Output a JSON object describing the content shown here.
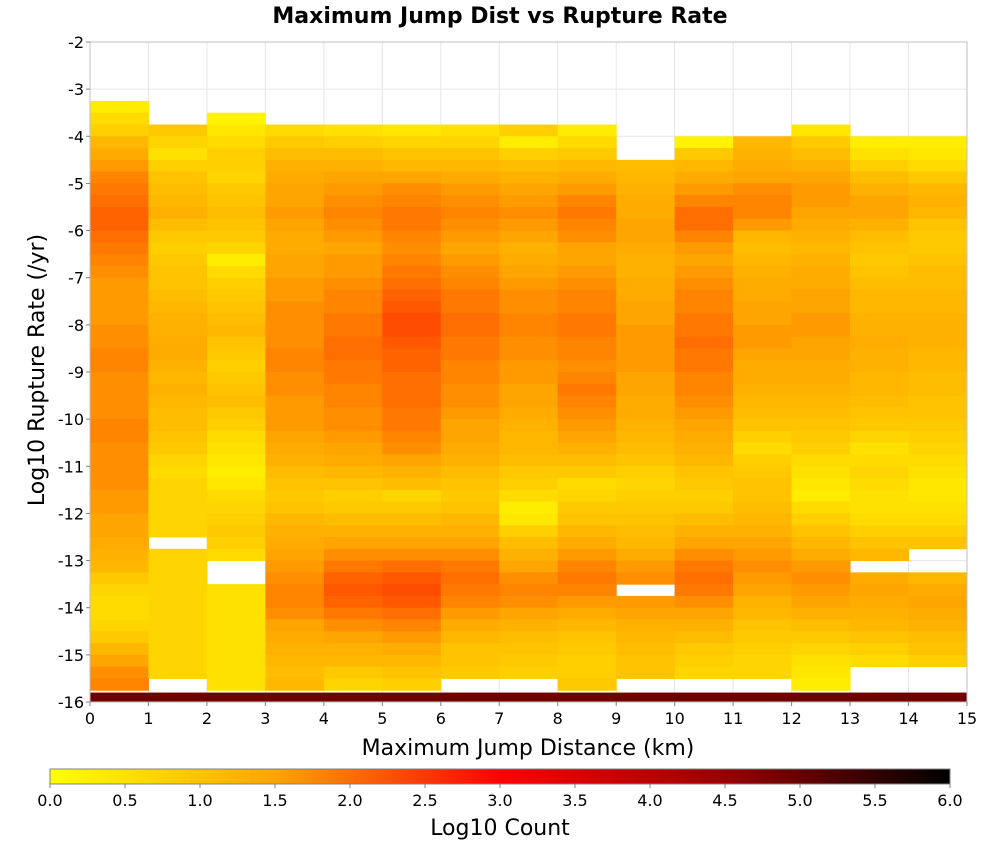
{
  "chart_data": {
    "type": "heatmap",
    "title": "Maximum Jump Dist vs Rupture Rate",
    "xlabel": "Maximum Jump Distance (km)",
    "ylabel": "Log10 Rupture Rate (/yr)",
    "xlim": [
      0,
      15
    ],
    "ylim": [
      -16,
      -2
    ],
    "x_ticks": [
      "0",
      "1",
      "2",
      "3",
      "4",
      "5",
      "6",
      "7",
      "8",
      "9",
      "10",
      "11",
      "12",
      "13",
      "14",
      "15"
    ],
    "y_ticks": [
      "-2",
      "-3",
      "-4",
      "-5",
      "-6",
      "-7",
      "-8",
      "-9",
      "-10",
      "-11",
      "-12",
      "-13",
      "-14",
      "-15",
      "-16"
    ],
    "bin_width_x": 1,
    "bin_height_y": 0.25,
    "grid": true,
    "colorscale": {
      "label": "Log10 Count",
      "min": 0.0,
      "max": 6.0,
      "ticks": [
        "0.0",
        "0.5",
        "1.0",
        "1.5",
        "2.0",
        "2.5",
        "3.0",
        "3.5",
        "4.0",
        "4.5",
        "5.0",
        "5.5",
        "6.0"
      ],
      "stops": [
        {
          "v": 0.0,
          "color": "#ffff00"
        },
        {
          "v": 1.5,
          "color": "#ffa500"
        },
        {
          "v": 3.0,
          "color": "#ff0000"
        },
        {
          "v": 4.5,
          "color": "#990000"
        },
        {
          "v": 6.0,
          "color": "#000000"
        }
      ]
    },
    "columns": [
      {
        "x0": 0,
        "top": -3.25,
        "bottom": -15.75,
        "values": [
          0.3,
          0.6,
          0.8,
          1.2,
          1.4,
          1.6,
          1.8,
          1.9,
          2.0,
          2.1,
          2.1,
          2.0,
          1.9,
          1.8,
          1.7,
          1.6,
          1.6,
          1.6,
          1.6,
          1.7,
          1.7,
          1.8,
          1.8,
          1.7,
          1.7,
          1.7,
          1.7,
          1.8,
          1.8,
          1.7,
          1.7,
          1.7,
          1.7,
          1.6,
          1.6,
          1.5,
          1.5,
          1.4,
          1.3,
          1.2,
          0.9,
          0.7,
          0.6,
          0.6,
          0.7,
          0.9,
          1.2,
          1.5,
          1.7,
          1.8,
          1.5,
          0.4
        ]
      },
      {
        "x0": 1,
        "top": -3.75,
        "bottom": -15.5,
        "values": [
          0.9,
          0.7,
          0.5,
          0.8,
          1.0,
          1.1,
          1.2,
          1.3,
          1.1,
          0.9,
          0.8,
          0.9,
          1.0,
          1.0,
          1.1,
          1.2,
          1.3,
          1.3,
          1.4,
          1.4,
          1.3,
          1.2,
          1.3,
          1.2,
          1.1,
          1.1,
          1.0,
          0.9,
          0.7,
          0.6,
          0.7
        ],
        "gaps": [
          [
            -12.75,
            -12.5
          ]
        ],
        "low_values": [
          0.6,
          0.5,
          0.2,
          0.4,
          0.7,
          0.9,
          1.1,
          1.3,
          1.4,
          1.2,
          0.5,
          0.2
        ]
      },
      {
        "x0": 2,
        "top": -3.5,
        "bottom": -15.75,
        "values": [
          0.2,
          0.4,
          0.6,
          0.8,
          0.8,
          0.7,
          0.9,
          1.0,
          1.1,
          1.0,
          0.9,
          0.7,
          0.3,
          0.6,
          0.8,
          0.9,
          1.0,
          1.1,
          1.2,
          1.0,
          0.9,
          0.8,
          0.9,
          1.0,
          1.1,
          0.9,
          0.8,
          0.6,
          0.5,
          0.4,
          0.3,
          0.4,
          0.6,
          0.7,
          0.8,
          0.9,
          0.8,
          0.6,
          0.5
        ],
        "gaps": [
          [
            -13.5,
            -13.0
          ]
        ],
        "low_values": [
          0.2,
          0.4,
          0.7,
          1.0,
          1.2,
          1.3,
          1.2,
          0.4,
          0.1
        ]
      },
      {
        "x0": 3,
        "top": -3.75,
        "bottom": -15.75,
        "values": [
          0.6,
          0.9,
          1.1,
          1.3,
          1.4,
          1.5,
          1.5,
          1.6,
          1.5,
          1.4,
          1.4,
          1.5,
          1.5,
          1.6,
          1.6,
          1.7,
          1.7,
          1.7,
          1.7,
          1.8,
          1.8,
          1.7,
          1.7,
          1.6,
          1.6,
          1.6,
          1.5,
          1.4,
          1.3,
          1.1,
          1.0,
          0.9,
          1.0,
          1.2,
          1.3,
          1.4,
          1.5,
          1.6,
          1.7,
          1.8,
          1.8,
          1.7,
          1.5,
          1.4,
          1.3,
          1.2,
          1.1,
          1.2
        ]
      },
      {
        "x0": 4,
        "top": -3.75,
        "bottom": -15.75,
        "values": [
          0.5,
          0.8,
          1.1,
          1.3,
          1.5,
          1.6,
          1.7,
          1.8,
          1.7,
          1.6,
          1.5,
          1.6,
          1.6,
          1.7,
          1.8,
          1.8,
          1.9,
          1.9,
          2.0,
          2.0,
          1.9,
          1.9,
          1.8,
          1.8,
          1.7,
          1.7,
          1.6,
          1.5,
          1.4,
          1.2,
          1.0,
          0.8,
          0.9,
          1.1,
          1.3,
          1.5,
          1.7,
          1.9,
          2.1,
          2.2,
          2.1,
          1.9,
          1.7,
          1.5,
          1.3,
          1.2,
          0.9,
          0.7
        ]
      },
      {
        "x0": 5,
        "top": -3.75,
        "bottom": -15.75,
        "values": [
          0.4,
          0.7,
          1.0,
          1.2,
          1.5,
          1.7,
          1.8,
          1.9,
          1.9,
          1.8,
          1.7,
          1.8,
          1.9,
          2.0,
          2.1,
          2.2,
          2.3,
          2.3,
          2.2,
          2.1,
          2.1,
          2.0,
          2.0,
          2.0,
          1.9,
          1.9,
          1.8,
          1.7,
          1.5,
          1.3,
          1.1,
          0.7,
          0.9,
          1.1,
          1.3,
          1.5,
          1.7,
          2.0,
          2.2,
          2.3,
          2.2,
          2.0,
          1.8,
          1.6,
          1.4,
          1.2,
          1.0,
          0.8
        ]
      },
      {
        "x0": 6,
        "top": -3.75,
        "bottom": -15.5,
        "values": [
          0.5,
          0.7,
          1.0,
          1.2,
          1.4,
          1.6,
          1.7,
          1.8,
          1.7,
          1.6,
          1.5,
          1.6,
          1.7,
          1.8,
          1.9,
          1.9,
          2.0,
          2.0,
          1.9,
          1.9,
          1.8,
          1.8,
          1.7,
          1.7,
          1.6,
          1.5,
          1.5,
          1.4,
          1.3,
          1.1,
          1.0,
          0.9,
          1.0,
          1.2,
          1.3,
          1.5,
          1.7,
          1.9,
          2.0,
          1.9,
          1.8,
          1.6,
          1.4,
          1.2,
          1.0,
          1.0,
          0.9
        ]
      },
      {
        "x0": 7,
        "top": -3.75,
        "bottom": -15.5,
        "values": [
          0.8,
          0.3,
          0.8,
          1.1,
          1.3,
          1.5,
          1.6,
          1.7,
          1.6,
          1.5,
          1.3,
          1.4,
          1.5,
          1.6,
          1.7,
          1.7,
          1.8,
          1.8,
          1.7,
          1.7,
          1.6,
          1.6,
          1.5,
          1.5,
          1.4,
          1.3,
          1.2,
          1.2,
          1.1,
          0.9,
          0.8,
          0.6,
          0.3,
          0.4,
          0.8,
          1.1,
          1.3,
          1.5,
          1.7,
          1.8,
          1.7,
          1.5,
          1.3,
          1.1,
          1.0,
          0.9,
          0.8
        ]
      },
      {
        "x0": 8,
        "top": -3.75,
        "bottom": -15.75,
        "values": [
          0.3,
          0.6,
          0.9,
          1.2,
          1.4,
          1.6,
          1.8,
          1.9,
          1.8,
          1.7,
          1.5,
          1.5,
          1.6,
          1.7,
          1.8,
          1.8,
          1.9,
          1.9,
          1.8,
          1.8,
          1.7,
          1.8,
          1.9,
          1.8,
          1.7,
          1.6,
          1.5,
          1.3,
          1.1,
          0.9,
          0.6,
          0.7,
          0.9,
          1.0,
          1.2,
          1.4,
          1.6,
          1.8,
          1.9,
          1.8,
          1.6,
          1.4,
          1.2,
          1.0,
          0.9,
          0.8,
          0.8,
          0.9
        ]
      },
      {
        "x0": 9,
        "top": -4.5,
        "bottom": -15.5,
        "values": [
          1.1,
          1.2,
          1.3,
          1.4,
          1.4,
          1.5,
          1.5,
          1.4,
          1.3,
          1.3,
          1.4,
          1.4,
          1.5,
          1.5,
          1.6,
          1.6,
          1.6,
          1.6,
          1.5,
          1.5,
          1.4,
          1.4,
          1.3,
          1.2,
          1.1,
          1.0,
          0.8,
          0.7,
          0.8,
          0.9,
          1.0,
          1.1,
          1.2,
          1.4,
          1.6,
          1.7,
          1.6,
          1.5,
          1.3,
          1.2,
          1.1,
          1.0
        ],
        "gaps": [
          [
            -13.75,
            -13.5
          ]
        ]
      },
      {
        "x0": 10,
        "top": -4.0,
        "bottom": -15.5,
        "values": [
          0.2,
          0.9,
          1.2,
          1.4,
          1.6,
          1.8,
          2.0,
          2.0,
          1.8,
          1.6,
          1.5,
          1.6,
          1.7,
          1.8,
          1.8,
          1.9,
          1.9,
          2.0,
          1.9,
          1.9,
          1.8,
          1.8,
          1.7,
          1.6,
          1.5,
          1.4,
          1.3,
          1.2,
          1.0,
          0.9,
          0.8,
          0.9,
          1.1,
          1.3,
          1.5,
          1.7,
          1.9,
          2.0,
          1.9,
          1.7,
          1.5,
          1.3,
          1.1,
          0.9,
          0.8,
          0.7
        ]
      },
      {
        "x0": 11,
        "top": -4.0,
        "bottom": -15.5,
        "values": [
          1.2,
          1.3,
          1.4,
          1.5,
          1.7,
          1.8,
          1.8,
          1.6,
          1.2,
          1.1,
          1.2,
          1.3,
          1.4,
          1.4,
          1.5,
          1.5,
          1.6,
          1.6,
          1.5,
          1.4,
          1.4,
          1.3,
          1.2,
          1.1,
          1.0,
          0.8,
          0.6,
          0.8,
          0.9,
          1.0,
          1.0,
          1.1,
          1.2,
          1.3,
          1.5,
          1.6,
          1.7,
          1.6,
          1.5,
          1.3,
          1.2,
          1.0,
          0.9,
          0.8,
          0.7,
          0.7
        ]
      },
      {
        "x0": 12,
        "top": -3.75,
        "bottom": -15.75,
        "values": [
          0.4,
          0.9,
          1.1,
          1.3,
          1.5,
          1.6,
          1.6,
          1.5,
          1.4,
          1.3,
          1.2,
          1.3,
          1.4,
          1.4,
          1.5,
          1.5,
          1.6,
          1.6,
          1.5,
          1.5,
          1.4,
          1.4,
          1.3,
          1.2,
          1.1,
          1.0,
          0.9,
          0.8,
          0.6,
          0.5,
          0.4,
          0.3,
          0.6,
          0.8,
          1.0,
          1.2,
          1.4,
          1.6,
          1.7,
          1.6,
          1.5,
          1.3,
          1.1,
          0.9,
          0.7,
          0.5,
          0.4,
          0.3
        ]
      },
      {
        "x0": 13,
        "top": -4.0,
        "bottom": -15.25,
        "values": [
          0.3,
          0.5,
          0.8,
          1.1,
          1.3,
          1.5,
          1.5,
          1.3,
          1.1,
          1.0,
          0.9,
          1.0,
          1.1,
          1.2,
          1.2,
          1.3,
          1.3,
          1.4,
          1.3,
          1.3,
          1.2,
          1.2,
          1.1,
          1.0,
          0.9,
          0.7,
          0.5,
          0.6,
          0.7,
          0.6,
          0.5,
          0.5,
          0.6,
          0.8,
          1.0,
          1.2,
          1.4,
          1.5,
          1.4,
          1.3,
          1.2,
          1.0,
          0.8,
          0.6,
          0.5
        ],
        "gaps": [
          [
            -13.25,
            -13.0
          ]
        ]
      },
      {
        "x0": 14,
        "top": -4.0,
        "bottom": -15.25,
        "values": [
          0.3,
          0.4,
          0.6,
          0.9,
          1.2,
          1.3,
          1.2,
          1.0,
          0.9,
          0.9,
          1.0,
          1.1,
          1.1,
          1.2,
          1.2,
          1.3,
          1.3,
          1.3,
          1.2,
          1.2,
          1.1,
          1.1,
          1.0,
          1.0,
          0.9,
          0.8,
          0.7,
          0.6,
          0.5,
          0.4,
          0.4,
          0.5,
          0.6,
          0.8,
          1.0,
          1.2,
          1.4,
          1.5,
          1.4,
          1.3,
          1.1,
          1.0,
          0.8,
          0.7,
          0.6
        ],
        "gaps": [
          [
            -13.25,
            -12.75
          ]
        ]
      }
    ],
    "bottom_strip": {
      "y0": -16.0,
      "y1": -15.8,
      "x0": 0,
      "x1": 15,
      "value": 4.9
    }
  }
}
